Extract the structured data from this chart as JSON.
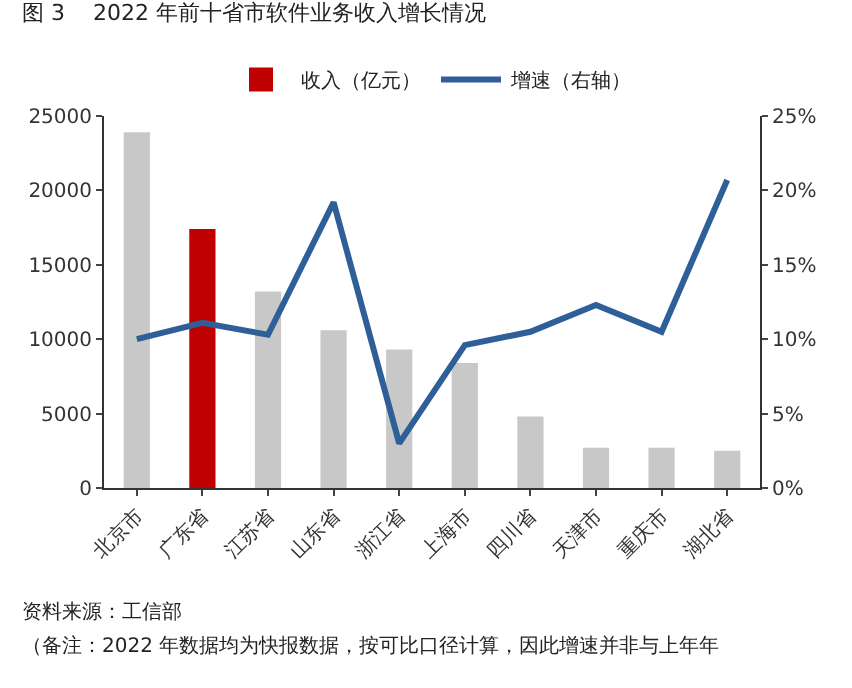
{
  "chart_data": {
    "type": "bar",
    "title": "图 3    2022 年前十省市软件业务收入增长情况",
    "categories": [
      "北京市",
      "广东省",
      "江苏省",
      "山东省",
      "浙江省",
      "上海市",
      "四川省",
      "天津市",
      "重庆市",
      "湖北省"
    ],
    "series": [
      {
        "name": "收入（亿元）",
        "color": "#c00000",
        "colors": [
          "#c8c8c8",
          "#c00000",
          "#c8c8c8",
          "#c8c8c8",
          "#c8c8c8",
          "#c8c8c8",
          "#c8c8c8",
          "#c8c8c8",
          "#c8c8c8",
          "#c8c8c8"
        ],
        "values": [
          23900,
          17400,
          13200,
          10600,
          9300,
          8400,
          4800,
          2700,
          2700,
          2500
        ]
      },
      {
        "name": "增速（右轴）",
        "type": "line",
        "axis": "y2",
        "color": "#2f5f98",
        "values": [
          10.0,
          11.1,
          10.3,
          19.2,
          3.0,
          9.6,
          10.5,
          12.3,
          10.5,
          20.7
        ]
      }
    ],
    "ylim": [
      0,
      25000
    ],
    "yticks": [
      0,
      5000,
      10000,
      15000,
      20000,
      25000
    ],
    "y2lim": [
      0,
      25
    ],
    "y2ticks": [
      {
        "value": 0,
        "label": "0%"
      },
      {
        "value": 5,
        "label": "5%"
      },
      {
        "value": 10,
        "label": "10%"
      },
      {
        "value": 15,
        "label": "15%"
      },
      {
        "value": 20,
        "label": "20%"
      },
      {
        "value": 25,
        "label": "25%"
      }
    ],
    "annotations": [
      "资料来源：工信部",
      "（备注：2022 年数据均为快报数据，按可比口径计算，因此增速并非与上年年"
    ],
    "grid": false,
    "legend": "top",
    "marker": "none",
    "line_style": "solid"
  }
}
